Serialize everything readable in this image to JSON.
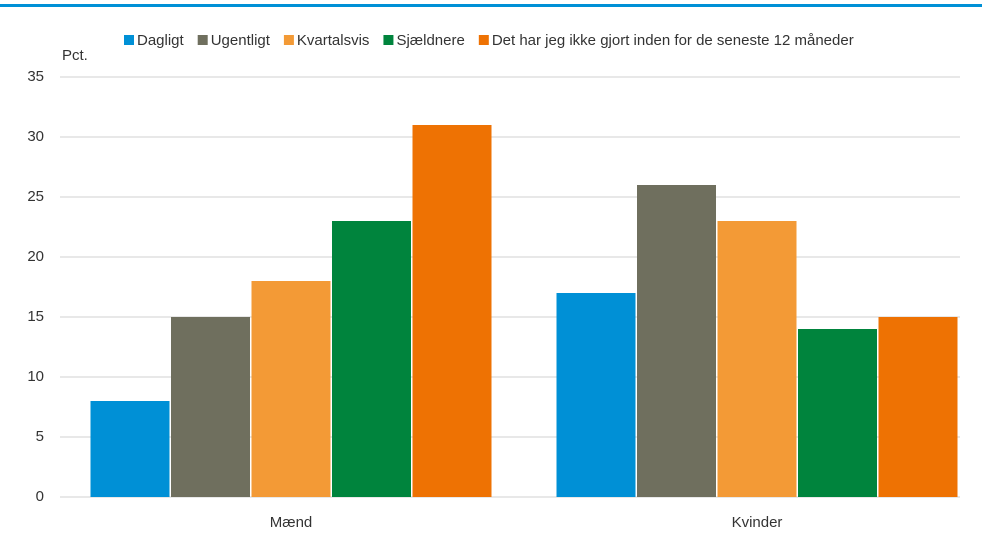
{
  "chart_data": {
    "type": "bar",
    "y_label": "Pct.",
    "categories": [
      "Mænd",
      "Kvinder"
    ],
    "series": [
      {
        "name": "Dagligt",
        "color": "#0090d6",
        "values": [
          8,
          17
        ]
      },
      {
        "name": "Ugentligt",
        "color": "#6f6f5e",
        "values": [
          15,
          26
        ]
      },
      {
        "name": "Kvartalsvis",
        "color": "#f39a36",
        "values": [
          18,
          23
        ]
      },
      {
        "name": "Sjældnere",
        "color": "#00843d",
        "values": [
          23,
          14
        ]
      },
      {
        "name": "Det har jeg ikke gjort inden for de seneste 12 måneder",
        "color": "#ee7203",
        "values": [
          31,
          15
        ]
      }
    ],
    "ylim": [
      0,
      35
    ],
    "yticks": [
      0,
      5,
      10,
      15,
      20,
      25,
      30,
      35
    ],
    "grid": true,
    "legend": "top"
  }
}
